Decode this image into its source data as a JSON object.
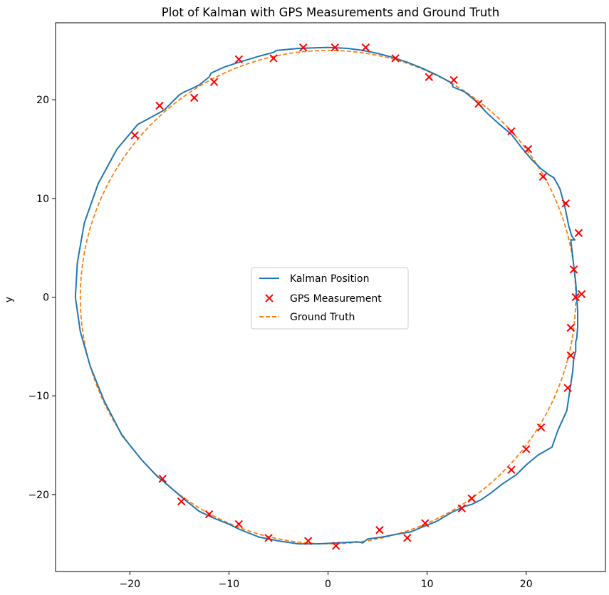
{
  "chart_data": {
    "type": "line",
    "title": "Plot of Kalman with GPS Measurements and Ground Truth",
    "xlabel": "",
    "ylabel": "y",
    "xlim": [
      -27.5,
      28.0
    ],
    "ylim": [
      -27.8,
      27.8
    ],
    "x_ticks": [
      -20,
      -10,
      0,
      10,
      20
    ],
    "y_ticks": [
      -20,
      -10,
      0,
      10,
      20
    ],
    "x_tick_labels": [
      "−20",
      "−10",
      "0",
      "10",
      "20"
    ],
    "y_tick_labels": [
      "−20",
      "−10",
      "0",
      "10",
      "20"
    ],
    "grid": false,
    "legend_position": "center",
    "series": [
      {
        "name": "Kalman Position",
        "kind": "line",
        "color": "#1f77b4",
        "x": [
          -25.5,
          -25.3,
          -24.6,
          -23.2,
          -21.3,
          -19.2,
          -16.8,
          -16.5,
          -15.0,
          -14.5,
          -13.8,
          -13.0,
          -12.0,
          -11.8,
          -10.5,
          -9.0,
          -7.0,
          -5.5,
          -5.2,
          -3.0,
          0.0,
          2.0,
          3.5,
          5.0,
          6.5,
          8.0,
          9.5,
          11.0,
          12.5,
          12.6,
          13.8,
          15.0,
          16.0,
          17.2,
          18.5,
          19.5,
          20.5,
          21.5,
          22.3,
          22.8,
          23.4,
          23.9,
          24.3,
          24.6,
          24.9,
          24.5,
          24.8,
          25.0,
          25.1,
          25.2,
          25.2,
          25.1,
          25.0,
          25.0,
          24.8,
          24.7,
          24.4,
          24.1,
          23.2,
          22.6,
          21.2,
          20.0,
          19.0,
          17.5,
          16.5,
          15.5,
          14.5,
          13.8,
          12.5,
          11.0,
          9.5,
          8.3,
          7.0,
          5.5,
          4.0,
          3.5,
          3.0,
          1.0,
          -1.0,
          -3.0,
          -5.0,
          -7.0,
          -9.0,
          -10.0,
          -11.5,
          -13.0,
          -14.5,
          -15.3,
          -16.8,
          -17.2,
          -18.8,
          -20.8,
          -22.6,
          -24.0,
          -25.0,
          -25.5
        ],
        "y": [
          0.0,
          3.5,
          7.5,
          11.5,
          15.0,
          17.5,
          18.8,
          19.0,
          20.5,
          20.8,
          21.1,
          21.5,
          22.3,
          22.7,
          23.3,
          23.8,
          24.4,
          24.8,
          25.0,
          25.2,
          25.3,
          25.2,
          25.0,
          24.7,
          24.3,
          23.8,
          23.2,
          22.5,
          21.7,
          21.3,
          20.8,
          19.8,
          18.7,
          17.6,
          16.5,
          15.2,
          14.0,
          13.0,
          12.4,
          12.1,
          11.0,
          9.2,
          7.2,
          6.2,
          5.8,
          5.8,
          3.2,
          1.5,
          0.0,
          -1.5,
          -3.0,
          -4.2,
          -4.5,
          -5.5,
          -6.2,
          -7.5,
          -9.5,
          -11.5,
          -13.5,
          -15.2,
          -16.0,
          -17.0,
          -18.0,
          -19.0,
          -19.8,
          -20.5,
          -21.0,
          -21.2,
          -21.8,
          -22.7,
          -23.3,
          -23.8,
          -24.0,
          -24.3,
          -24.5,
          -24.9,
          -24.8,
          -24.9,
          -25.0,
          -25.0,
          -24.7,
          -24.3,
          -23.5,
          -23.0,
          -22.4,
          -21.7,
          -20.5,
          -19.8,
          -18.5,
          -18.2,
          -16.5,
          -14.0,
          -10.5,
          -7.0,
          -3.5,
          0.0
        ]
      },
      {
        "name": "GPS Measurement",
        "kind": "scatter",
        "color": "#ff0000",
        "marker": "x",
        "x": [
          -19.5,
          -17.0,
          -13.5,
          -11.5,
          -9.0,
          -5.5,
          -2.5,
          0.7,
          3.8,
          6.8,
          10.2,
          12.7,
          15.2,
          18.5,
          20.2,
          21.7,
          24.0,
          25.3,
          24.8,
          25.0,
          25.6,
          24.5,
          24.5,
          24.2,
          21.5,
          20.0,
          18.5,
          14.5,
          13.5,
          9.8,
          8.0,
          5.2,
          0.8,
          -2.0,
          -6.0,
          -9.0,
          -12.0,
          -14.8,
          -16.7
        ],
        "y": [
          16.4,
          19.4,
          20.2,
          21.8,
          24.1,
          24.2,
          25.3,
          25.3,
          25.3,
          24.2,
          22.3,
          22.0,
          19.6,
          16.8,
          15.0,
          12.2,
          9.5,
          6.5,
          2.8,
          0.0,
          0.3,
          -3.1,
          -5.9,
          -9.2,
          -13.2,
          -15.4,
          -17.5,
          -20.4,
          -21.4,
          -22.9,
          -24.4,
          -23.6,
          -25.2,
          -24.7,
          -24.4,
          -23.0,
          -22.0,
          -20.7,
          -18.4
        ]
      },
      {
        "name": "Ground Truth",
        "kind": "line",
        "color": "#ff7f0e",
        "dashed": true,
        "shape": "circle",
        "center": [
          0,
          0
        ],
        "radius": 25
      }
    ]
  }
}
